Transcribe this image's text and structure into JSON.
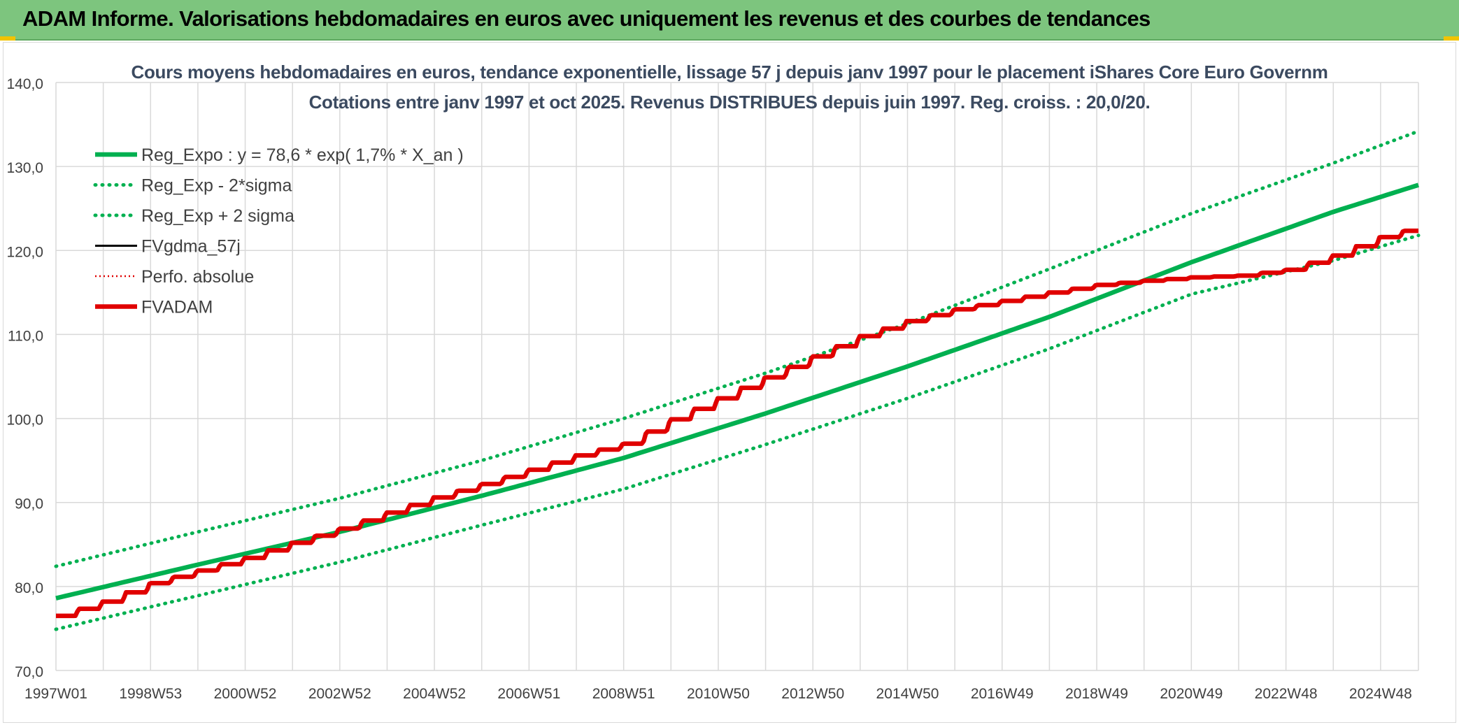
{
  "header": {
    "title": "ADAM Informe. Valorisations hebdomadaires en euros avec uniquement les revenus et des courbes de tendances"
  },
  "colors": {
    "banner": "#7dc57e",
    "green": "#00b050",
    "black": "#000000",
    "red": "#e00000",
    "grid": "#d9d9d9",
    "axis_text": "#404040",
    "title_text": "#3b4a60"
  },
  "chart_data": {
    "type": "line",
    "title_line1": "Cours moyens hebdomadaires en euros, tendance exponentielle, lissage 57 j depuis janv 1997 pour le placement iShares Core Euro Governm",
    "title_line2": "Cotations entre janv 1997 et oct 2025. Revenus DISTRIBUES depuis juin 1997. Reg. croiss. : 20,0/20.",
    "ylim": [
      70,
      140
    ],
    "yticks": [
      "70,0",
      "80,0",
      "90,0",
      "100,0",
      "110,0",
      "120,0",
      "130,0",
      "140,0"
    ],
    "xlim": [
      1997.0,
      2025.8
    ],
    "xticks": [
      {
        "label": "1997W01",
        "t": 1997.0
      },
      {
        "label": "1998W53",
        "t": 1999.0
      },
      {
        "label": "2000W52",
        "t": 2001.0
      },
      {
        "label": "2002W52",
        "t": 2003.0
      },
      {
        "label": "2004W52",
        "t": 2005.0
      },
      {
        "label": "2006W51",
        "t": 2007.0
      },
      {
        "label": "2008W51",
        "t": 2009.0
      },
      {
        "label": "2010W50",
        "t": 2011.0
      },
      {
        "label": "2012W50",
        "t": 2013.0
      },
      {
        "label": "2014W50",
        "t": 2015.0
      },
      {
        "label": "2016W49",
        "t": 2017.0
      },
      {
        "label": "2018W49",
        "t": 2019.0
      },
      {
        "label": "2020W49",
        "t": 2021.0
      },
      {
        "label": "2022W48",
        "t": 2023.0
      },
      {
        "label": "2024W48",
        "t": 2025.0
      }
    ],
    "legend_position": "top-left",
    "series": [
      {
        "name": "Reg_Expo : y = 78,6 * exp( 1,7% *  X_an )",
        "color": "#00b050",
        "style": "solid-thick",
        "points": [
          [
            1997.0,
            78.6
          ],
          [
            2000.0,
            82.6
          ],
          [
            2003.0,
            86.5
          ],
          [
            2006.0,
            90.8
          ],
          [
            2009.0,
            95.3
          ],
          [
            2012.0,
            100.6
          ],
          [
            2015.0,
            106.2
          ],
          [
            2018.0,
            112.1
          ],
          [
            2021.0,
            118.6
          ],
          [
            2024.0,
            124.6
          ],
          [
            2025.8,
            127.8
          ]
        ]
      },
      {
        "name": "Reg_Exp - 2*sigma",
        "color": "#00b050",
        "style": "dotted",
        "points": [
          [
            1997.0,
            74.9
          ],
          [
            2000.0,
            78.9
          ],
          [
            2003.0,
            82.9
          ],
          [
            2006.0,
            87.3
          ],
          [
            2009.0,
            91.6
          ],
          [
            2012.0,
            96.9
          ],
          [
            2015.0,
            102.4
          ],
          [
            2018.0,
            108.3
          ],
          [
            2021.0,
            114.8
          ],
          [
            2024.0,
            118.8
          ],
          [
            2025.8,
            121.8
          ]
        ]
      },
      {
        "name": "Reg_Exp + 2 sigma",
        "color": "#00b050",
        "style": "dotted",
        "points": [
          [
            1997.0,
            82.4
          ],
          [
            2000.0,
            86.5
          ],
          [
            2003.0,
            90.5
          ],
          [
            2006.0,
            95.0
          ],
          [
            2009.0,
            100.0
          ],
          [
            2012.0,
            105.4
          ],
          [
            2015.0,
            111.3
          ],
          [
            2018.0,
            117.8
          ],
          [
            2021.0,
            124.4
          ],
          [
            2024.0,
            130.4
          ],
          [
            2025.8,
            134.2
          ]
        ]
      },
      {
        "name": "FVgdma_57j",
        "color": "#000000",
        "style": "solid",
        "points": [
          [
            1997.0,
            76.5
          ],
          [
            1998.0,
            78.2
          ],
          [
            1999.0,
            80.4
          ],
          [
            2000.0,
            81.9
          ],
          [
            2001.0,
            83.4
          ],
          [
            2002.0,
            85.2
          ],
          [
            2003.0,
            86.9
          ],
          [
            2004.0,
            88.8
          ],
          [
            2005.0,
            90.6
          ],
          [
            2006.0,
            92.2
          ],
          [
            2007.0,
            93.9
          ],
          [
            2008.0,
            95.6
          ],
          [
            2009.0,
            97.0
          ],
          [
            2010.0,
            99.9
          ],
          [
            2011.0,
            102.4
          ],
          [
            2012.0,
            104.9
          ],
          [
            2013.0,
            107.4
          ],
          [
            2014.0,
            109.8
          ],
          [
            2015.0,
            111.6
          ],
          [
            2016.0,
            113.0
          ],
          [
            2017.0,
            114.0
          ],
          [
            2018.0,
            115.0
          ],
          [
            2019.0,
            115.9
          ],
          [
            2020.0,
            116.4
          ],
          [
            2021.0,
            116.8
          ],
          [
            2022.0,
            117.0
          ],
          [
            2023.0,
            117.7
          ],
          [
            2024.0,
            119.4
          ],
          [
            2025.0,
            121.6
          ],
          [
            2025.8,
            122.8
          ]
        ]
      },
      {
        "name": "Perfo. absolue",
        "color": "#e00000",
        "style": "dotted-thin",
        "points": [
          [
            1997.0,
            76.5
          ],
          [
            1998.0,
            78.2
          ],
          [
            1999.0,
            80.4
          ],
          [
            2000.0,
            81.9
          ],
          [
            2001.0,
            83.4
          ],
          [
            2002.0,
            85.2
          ],
          [
            2003.0,
            86.9
          ],
          [
            2004.0,
            88.8
          ],
          [
            2005.0,
            90.6
          ],
          [
            2006.0,
            92.2
          ],
          [
            2007.0,
            93.9
          ],
          [
            2008.0,
            95.6
          ],
          [
            2009.0,
            97.0
          ],
          [
            2010.0,
            99.9
          ],
          [
            2011.0,
            102.4
          ],
          [
            2012.0,
            104.9
          ],
          [
            2013.0,
            107.4
          ],
          [
            2014.0,
            109.8
          ],
          [
            2015.0,
            111.6
          ],
          [
            2016.0,
            113.0
          ],
          [
            2017.0,
            114.0
          ],
          [
            2018.0,
            115.0
          ],
          [
            2019.0,
            115.9
          ],
          [
            2020.0,
            116.4
          ],
          [
            2021.0,
            116.8
          ],
          [
            2022.0,
            117.0
          ],
          [
            2023.0,
            117.7
          ],
          [
            2024.0,
            119.4
          ],
          [
            2025.0,
            121.6
          ],
          [
            2025.8,
            122.8
          ]
        ]
      },
      {
        "name": "FVADAM",
        "color": "#e00000",
        "style": "solid-thick",
        "points": [
          [
            1997.0,
            76.5
          ],
          [
            1998.0,
            78.2
          ],
          [
            1999.0,
            80.4
          ],
          [
            2000.0,
            81.9
          ],
          [
            2001.0,
            83.4
          ],
          [
            2002.0,
            85.2
          ],
          [
            2003.0,
            86.9
          ],
          [
            2004.0,
            88.8
          ],
          [
            2005.0,
            90.6
          ],
          [
            2006.0,
            92.2
          ],
          [
            2007.0,
            93.9
          ],
          [
            2008.0,
            95.6
          ],
          [
            2009.0,
            97.0
          ],
          [
            2010.0,
            99.9
          ],
          [
            2011.0,
            102.4
          ],
          [
            2012.0,
            104.9
          ],
          [
            2013.0,
            107.4
          ],
          [
            2014.0,
            109.8
          ],
          [
            2015.0,
            111.6
          ],
          [
            2016.0,
            113.0
          ],
          [
            2017.0,
            114.0
          ],
          [
            2018.0,
            115.0
          ],
          [
            2019.0,
            115.9
          ],
          [
            2020.0,
            116.4
          ],
          [
            2021.0,
            116.8
          ],
          [
            2022.0,
            117.0
          ],
          [
            2023.0,
            117.7
          ],
          [
            2024.0,
            119.4
          ],
          [
            2025.0,
            121.6
          ],
          [
            2025.8,
            122.8
          ]
        ]
      }
    ]
  }
}
